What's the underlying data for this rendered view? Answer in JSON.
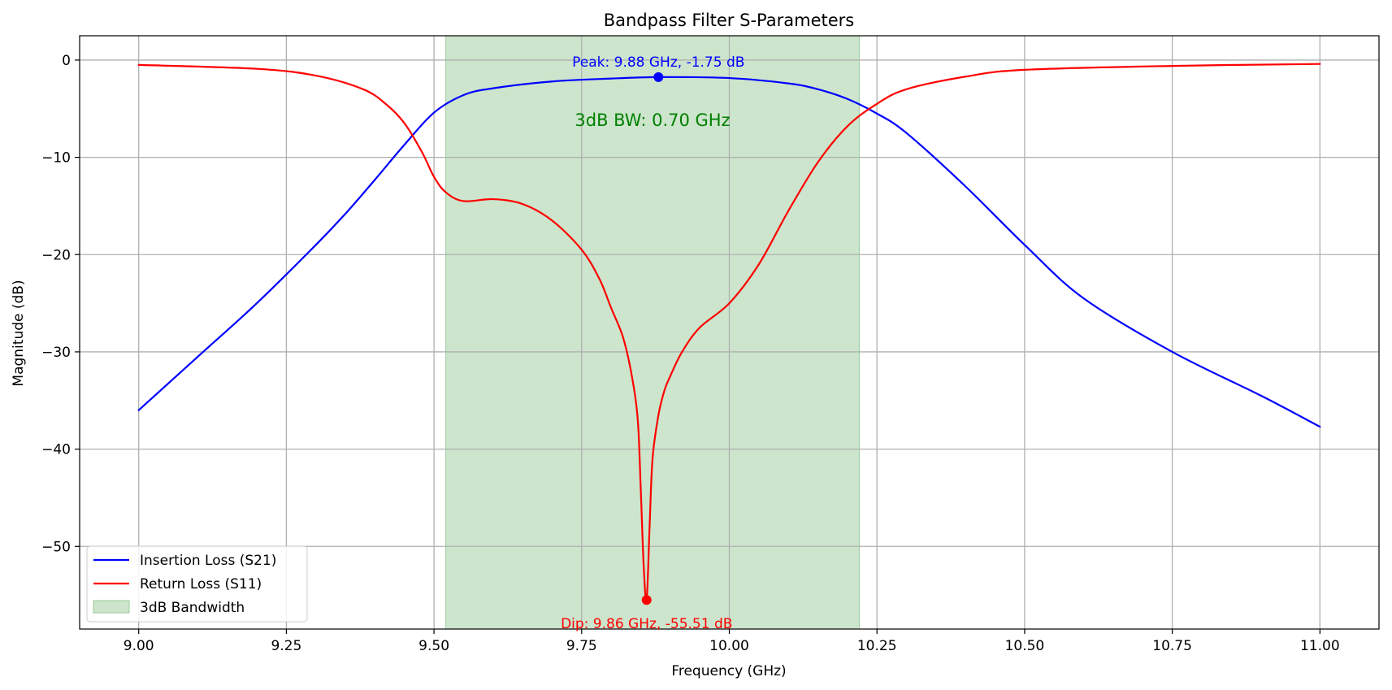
{
  "chart_data": {
    "type": "line",
    "title": "Bandpass Filter S-Parameters",
    "xlabel": "Frequency (GHz)",
    "ylabel": "Magnitude (dB)",
    "xlim": [
      8.9,
      11.1
    ],
    "ylim": [
      -58.5,
      2.5
    ],
    "x_ticks": [
      9.0,
      9.25,
      9.5,
      9.75,
      10.0,
      10.25,
      10.5,
      10.75,
      11.0
    ],
    "x_tick_labels": [
      "9.00",
      "9.25",
      "9.50",
      "9.75",
      "10.00",
      "10.25",
      "10.50",
      "10.75",
      "11.00"
    ],
    "y_ticks": [
      0,
      -10,
      -20,
      -30,
      -40,
      -50
    ],
    "y_tick_labels": [
      "0",
      "−10",
      "−20",
      "−30",
      "−40",
      "−50"
    ],
    "grid": true,
    "legend_position": "lower-left",
    "colors": {
      "s21": "#0000ff",
      "s11": "#ff0000",
      "band_fill": "#cce5cc",
      "band_edge": "#99cc99",
      "bw_text": "#008000"
    },
    "series": [
      {
        "name": "Insertion Loss (S21)",
        "x": [
          9.0,
          9.1,
          9.2,
          9.3,
          9.35,
          9.4,
          9.45,
          9.5,
          9.55,
          9.6,
          9.7,
          9.8,
          9.88,
          10.0,
          10.1,
          10.15,
          10.2,
          10.25,
          10.3,
          10.4,
          10.5,
          10.6,
          10.75,
          10.9,
          11.0
        ],
        "y": [
          -36.0,
          -30.5,
          -25.0,
          -19.0,
          -15.8,
          -12.3,
          -8.7,
          -5.4,
          -3.6,
          -2.9,
          -2.2,
          -1.9,
          -1.75,
          -1.85,
          -2.4,
          -3.0,
          -4.0,
          -5.5,
          -7.5,
          -13.0,
          -19.0,
          -24.5,
          -30.0,
          -34.5,
          -37.7
        ]
      },
      {
        "name": "Return Loss (S11)",
        "x": [
          9.0,
          9.2,
          9.3,
          9.38,
          9.42,
          9.45,
          9.48,
          9.5,
          9.52,
          9.55,
          9.6,
          9.65,
          9.7,
          9.75,
          9.78,
          9.8,
          9.82,
          9.835,
          9.845,
          9.85,
          9.855,
          9.86,
          9.865,
          9.87,
          9.88,
          9.89,
          9.9,
          9.92,
          9.95,
          10.0,
          10.05,
          10.1,
          10.15,
          10.2,
          10.25,
          10.3,
          10.4,
          10.5,
          10.75,
          11.0
        ],
        "y": [
          -0.5,
          -0.9,
          -1.6,
          -3.0,
          -4.6,
          -6.5,
          -9.5,
          -12.0,
          -13.6,
          -14.5,
          -14.3,
          -14.8,
          -16.5,
          -19.5,
          -22.5,
          -25.5,
          -28.5,
          -32.5,
          -37.0,
          -44.0,
          -52.0,
          -55.51,
          -48.0,
          -41.0,
          -36.5,
          -34.0,
          -32.5,
          -30.0,
          -27.5,
          -25.0,
          -21.0,
          -15.5,
          -10.5,
          -6.8,
          -4.5,
          -3.0,
          -1.7,
          -1.0,
          -0.6,
          -0.4
        ]
      }
    ],
    "band": {
      "name": "3dB Bandwidth",
      "x_start": 9.52,
      "x_end": 10.22
    },
    "markers": [
      {
        "x": 9.88,
        "y": -1.75,
        "label": "Peak: 9.88 GHz, -1.75 dB",
        "series": "s21"
      },
      {
        "x": 9.86,
        "y": -55.51,
        "label": "Dip: 9.86 GHz, -55.51 dB",
        "series": "s11"
      }
    ],
    "annotation": {
      "text": "3dB BW: 0.70 GHz",
      "x": 9.87,
      "y": -6.2
    }
  }
}
